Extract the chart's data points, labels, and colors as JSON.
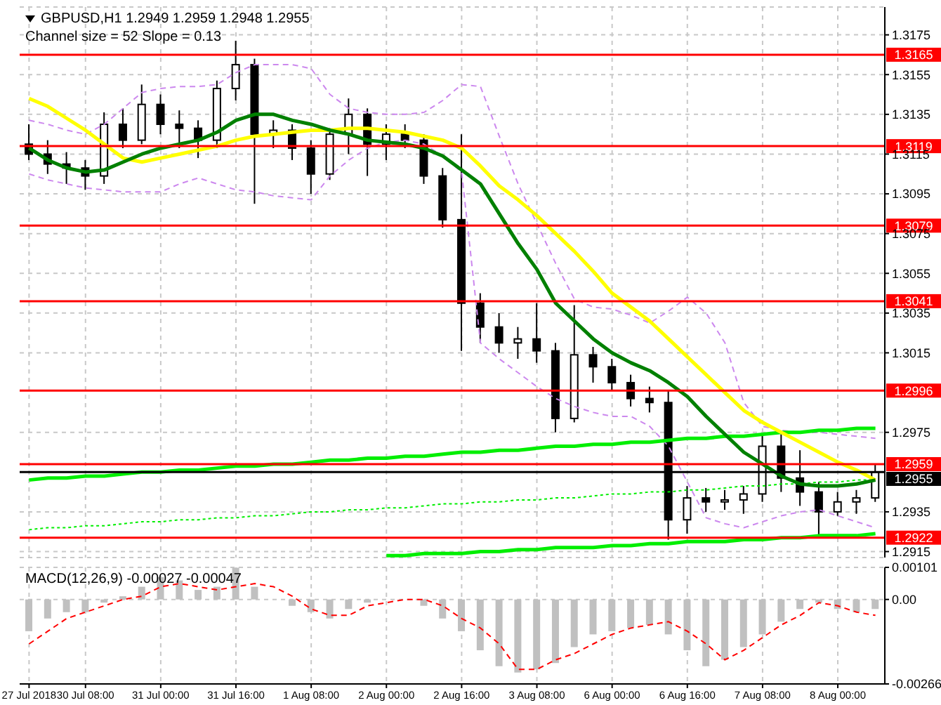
{
  "chart_data": [
    {
      "type": "candlestick",
      "title": "GBPUSD,H1  1.2949 1.2959 1.2948 1.2955",
      "subtitle": "Channel size = 52 Slope = 0.13",
      "categories": [
        null,
        null,
        null,
        null,
        null,
        null,
        null,
        null,
        null,
        null,
        null,
        null,
        null,
        null,
        null,
        null,
        null,
        null,
        null,
        null,
        null,
        null,
        null,
        null,
        null,
        null,
        null,
        null,
        null,
        null,
        null,
        null,
        null,
        null,
        null,
        null,
        null,
        null,
        null,
        null,
        null,
        null,
        null,
        null,
        null,
        null
      ],
      "ohlc": [
        [
          1.312,
          1.313,
          1.3112,
          1.3115
        ],
        [
          1.3115,
          1.3122,
          1.3105,
          1.311
        ],
        [
          1.311,
          1.3116,
          1.31,
          1.3108
        ],
        [
          1.3108,
          1.3112,
          1.3097,
          1.3104
        ],
        [
          1.3104,
          1.3136,
          1.31,
          1.313
        ],
        [
          1.313,
          1.3138,
          1.3118,
          1.3122
        ],
        [
          1.3122,
          1.315,
          1.312,
          1.314
        ],
        [
          1.314,
          1.3145,
          1.3125,
          1.313
        ],
        [
          1.313,
          1.3137,
          1.3118,
          1.3128
        ],
        [
          1.3128,
          1.3132,
          1.3113,
          1.3122
        ],
        [
          1.3122,
          1.3152,
          1.3118,
          1.3148
        ],
        [
          1.3148,
          1.3172,
          1.3142,
          1.316
        ],
        [
          1.316,
          1.3163,
          1.309,
          1.3125
        ],
        [
          1.3125,
          1.3132,
          1.3118,
          1.3127
        ],
        [
          1.3127,
          1.313,
          1.3112,
          1.3118
        ],
        [
          1.3118,
          1.3122,
          1.3095,
          1.3105
        ],
        [
          1.3105,
          1.3128,
          1.3102,
          1.3125
        ],
        [
          1.3125,
          1.3143,
          1.3115,
          1.3135
        ],
        [
          1.3135,
          1.3138,
          1.3104,
          1.312
        ],
        [
          1.312,
          1.313,
          1.3112,
          1.3125
        ],
        [
          1.3125,
          1.313,
          1.3118,
          1.3122
        ],
        [
          1.3122,
          1.3125,
          1.31,
          1.3104
        ],
        [
          1.3104,
          1.3108,
          1.3078,
          1.3082
        ],
        [
          1.3082,
          1.3125,
          1.3016,
          1.304
        ],
        [
          1.304,
          1.3045,
          1.302,
          1.3028
        ],
        [
          1.3028,
          1.3035,
          1.3015,
          1.302
        ],
        [
          1.302,
          1.3028,
          1.3012,
          1.3022
        ],
        [
          1.3022,
          1.304,
          1.301,
          1.3016
        ],
        [
          1.3016,
          1.302,
          1.2975,
          1.2982
        ],
        [
          1.2982,
          1.3039,
          1.298,
          1.3014
        ],
        [
          1.3014,
          1.3018,
          1.3,
          1.3008
        ],
        [
          1.3008,
          1.3012,
          1.2996,
          1.3
        ],
        [
          1.3,
          1.3004,
          1.2988,
          1.2992
        ],
        [
          1.2992,
          1.2998,
          1.2985,
          1.299
        ],
        [
          1.299,
          1.2996,
          1.2921,
          1.2931
        ],
        [
          1.2931,
          1.2948,
          1.2924,
          1.2942
        ],
        [
          1.2942,
          1.2947,
          1.2935,
          1.294
        ],
        [
          1.294,
          1.2946,
          1.2936,
          1.2941
        ],
        [
          1.2941,
          1.2948,
          1.2934,
          1.2944
        ],
        [
          1.2944,
          1.2974,
          1.294,
          1.2968
        ],
        [
          1.2968,
          1.2974,
          1.2945,
          1.2952
        ],
        [
          1.2952,
          1.2966,
          1.2938,
          1.2945
        ],
        [
          1.2945,
          1.295,
          1.2923,
          1.2935
        ],
        [
          1.2935,
          1.2945,
          1.2933,
          1.294
        ],
        [
          1.294,
          1.2946,
          1.2934,
          1.2942
        ],
        [
          1.2942,
          1.2959,
          1.294,
          1.2955
        ]
      ],
      "series": [
        {
          "type": "line",
          "color": "#cc88ee",
          "line_style": "dashed",
          "values": [
            1.3132,
            1.313,
            1.3127,
            1.3125,
            1.313,
            1.3138,
            1.3146,
            1.3148,
            1.3149,
            1.3149,
            1.315,
            1.3156,
            1.316,
            1.316,
            1.316,
            1.3158,
            1.3145,
            1.3138,
            1.3136,
            1.3135,
            1.3135,
            1.3136,
            1.3142,
            1.315,
            1.3149,
            1.3124,
            1.31,
            1.308,
            1.306,
            1.3042,
            1.3038,
            1.3037,
            1.3034,
            1.303,
            1.3036,
            1.3043,
            1.3035,
            1.302,
            1.299,
            1.2978,
            1.2976,
            1.2975,
            1.2975,
            1.2974,
            1.2973,
            1.2972
          ]
        },
        {
          "type": "line",
          "color": "#cc88ee",
          "line_style": "dashed",
          "values": [
            1.3105,
            1.3102,
            1.31,
            1.3098,
            1.3097,
            1.3096,
            1.3096,
            1.3096,
            1.31,
            1.3103,
            1.31,
            1.3097,
            1.3096,
            1.3094,
            1.3093,
            1.3092,
            1.3104,
            1.3112,
            1.3118,
            1.3121,
            1.3122,
            1.312,
            1.3114,
            1.3106,
            1.302,
            1.3012,
            1.3005,
            1.2998,
            1.2992,
            1.2988,
            1.2985,
            1.2983,
            1.2983,
            1.2978,
            1.2968,
            1.295,
            1.2932,
            1.2929,
            1.2927,
            1.293,
            1.2933,
            1.2935,
            1.2936,
            1.2933,
            1.293,
            1.2927
          ]
        },
        {
          "type": "line",
          "color": "#00ee00",
          "values": [
            1.2951,
            1.2952,
            1.2952,
            1.2953,
            1.2953,
            1.2954,
            1.2955,
            1.2955,
            1.2956,
            1.2956,
            1.2957,
            1.2958,
            1.2958,
            1.2959,
            1.2959,
            1.296,
            1.2961,
            1.2961,
            1.2962,
            1.2962,
            1.2963,
            1.2963,
            1.2964,
            1.2965,
            1.2965,
            1.2966,
            1.2966,
            1.2967,
            1.2968,
            1.2968,
            1.2969,
            1.2969,
            1.297,
            1.297,
            1.2971,
            1.2972,
            1.2972,
            1.2973,
            1.2973,
            1.2974,
            1.2975,
            1.2975,
            1.2976,
            1.2976,
            1.2977,
            1.2977
          ]
        },
        {
          "type": "line",
          "color": "#00ee00",
          "line_style": "dotted",
          "values": [
            1.2926,
            1.2927,
            1.2927,
            1.2928,
            1.2928,
            1.2929,
            1.293,
            1.293,
            1.2931,
            1.2931,
            1.2932,
            1.2932,
            1.2933,
            1.2933,
            1.2934,
            1.2935,
            1.2935,
            1.2936,
            1.2936,
            1.2937,
            1.2937,
            1.2938,
            1.2939,
            1.2939,
            1.294,
            1.294,
            1.2941,
            1.2941,
            1.2942,
            1.2942,
            1.2943,
            1.2944,
            1.2944,
            1.2945,
            1.2945,
            1.2946,
            1.2946,
            1.2947,
            1.2948,
            1.2948,
            1.2949,
            1.2949,
            1.295,
            1.295,
            1.2951,
            1.2951
          ]
        },
        {
          "type": "line",
          "color": "#00ee00",
          "values": [
            null,
            null,
            null,
            null,
            null,
            null,
            null,
            null,
            null,
            null,
            null,
            null,
            null,
            null,
            null,
            null,
            null,
            null,
            null,
            1.2913,
            1.2913,
            1.2914,
            1.2914,
            1.2914,
            1.2915,
            1.2915,
            1.2916,
            1.2916,
            1.2917,
            1.2917,
            1.2917,
            1.2918,
            1.2918,
            1.2919,
            1.2919,
            1.292,
            1.292,
            1.292,
            1.2921,
            1.2921,
            1.2922,
            1.2922,
            1.2923,
            1.2923,
            1.2923,
            1.2924
          ]
        },
        {
          "type": "line",
          "color": "#ffff00",
          "values": [
            1.3143,
            1.3139,
            1.3133,
            1.3127,
            1.312,
            1.3113,
            1.3111,
            1.3113,
            1.3115,
            1.3117,
            1.3119,
            1.3122,
            1.3124,
            1.3125,
            1.3126,
            1.3127,
            1.3127,
            1.3128,
            1.3128,
            1.3127,
            1.3126,
            1.3124,
            1.3122,
            1.3118,
            1.3109,
            1.3099,
            1.3092,
            1.3084,
            1.3075,
            1.3066,
            1.3056,
            1.3045,
            1.3038,
            1.3031,
            1.3022,
            1.3013,
            1.3004,
            1.2995,
            1.2986,
            1.298,
            1.2975,
            1.297,
            1.2965,
            1.296,
            1.2956,
            1.2951
          ]
        },
        {
          "type": "line",
          "color": "#008000",
          "values": [
            1.3118,
            1.3112,
            1.3108,
            1.3106,
            1.3107,
            1.3111,
            1.3115,
            1.3118,
            1.312,
            1.3122,
            1.3126,
            1.3132,
            1.3135,
            1.3135,
            1.3132,
            1.313,
            1.3127,
            1.3125,
            1.3122,
            1.3121,
            1.312,
            1.3118,
            1.3114,
            1.3107,
            1.31,
            1.3085,
            1.307,
            1.3057,
            1.304,
            1.3031,
            1.3022,
            1.3015,
            1.301,
            1.3006,
            1.3,
            1.2993,
            1.2983,
            1.2974,
            1.2965,
            1.2959,
            1.2953,
            1.2949,
            1.2948,
            1.2948,
            1.2949,
            1.2951
          ]
        }
      ],
      "ylim": [
        1.2912,
        1.3189
      ],
      "yticks": [
        1.3175,
        1.3155,
        1.3135,
        1.3115,
        1.3095,
        1.3075,
        1.3055,
        1.3035,
        1.3015,
        1.2975,
        1.2935,
        1.2915
      ],
      "ref_lines": [
        {
          "axis": "y",
          "value": 1.3165,
          "label": "1.3165",
          "color": "#ff0000"
        },
        {
          "axis": "y",
          "value": 1.3119,
          "label": "1.3119",
          "color": "#ff0000"
        },
        {
          "axis": "y",
          "value": 1.3079,
          "label": "1.3079",
          "color": "#ff0000"
        },
        {
          "axis": "y",
          "value": 1.3041,
          "label": "1.3041",
          "color": "#ff0000"
        },
        {
          "axis": "y",
          "value": 1.2996,
          "label": "1.2996",
          "color": "#ff0000"
        },
        {
          "axis": "y",
          "value": 1.2959,
          "label": "1.2959",
          "color": "#ff0000"
        },
        {
          "axis": "y",
          "value": 1.2955,
          "label": "1.2955",
          "color": "#000000"
        },
        {
          "axis": "y",
          "value": 1.2922,
          "label": "1.2922",
          "color": "#ff0000"
        }
      ],
      "grid": true,
      "tick_labels": "y"
    },
    {
      "type": "bar",
      "title": "MACD(12,26,9) -0.00027 -0.00047",
      "categories": [
        "27 Jul 2018",
        null,
        null,
        "30 Jul 08:00",
        null,
        null,
        null,
        "31 Jul 00:00",
        null,
        null,
        null,
        "31 Jul 16:00",
        null,
        null,
        null,
        "1 Aug 08:00",
        null,
        null,
        null,
        "2 Aug 00:00",
        null,
        null,
        null,
        "2 Aug 16:00",
        null,
        null,
        null,
        "3 Aug 08:00",
        null,
        null,
        null,
        "6 Aug 00:00",
        null,
        null,
        null,
        "6 Aug 16:00",
        null,
        null,
        null,
        "7 Aug 08:00",
        null,
        null,
        null,
        "8 Aug 00:00",
        null,
        null
      ],
      "series": [
        {
          "type": "bar",
          "color": "#c0c0c0",
          "values": [
            -0.001,
            -0.0006,
            -0.0004,
            -0.0004,
            -0.0001,
            0.0001,
            0.0004,
            0.0007,
            0.0006,
            0.0003,
            0.0004,
            0.001,
            0.0004,
            0.0,
            -0.0002,
            -0.0004,
            -0.0006,
            -0.0003,
            -0.0001,
            0.0,
            0.0,
            -0.0002,
            -0.0006,
            -0.001,
            -0.0016,
            -0.0021,
            -0.0023,
            -0.0022,
            -0.002,
            -0.0015,
            -0.0011,
            -0.001,
            -0.0009,
            -0.0008,
            -0.0011,
            -0.0016,
            -0.0021,
            -0.0019,
            -0.0015,
            -0.0011,
            -0.0007,
            -0.0003,
            -0.0001,
            -0.0003,
            -0.0004,
            -0.0003
          ]
        },
        {
          "type": "line",
          "color": "#ff0000",
          "line_style": "dashed",
          "values": [
            -0.0014,
            -0.001,
            -0.0006,
            -0.0004,
            -0.0002,
            0.0,
            0.0001,
            0.0004,
            0.0005,
            0.0004,
            0.0003,
            0.0004,
            0.0005,
            0.0004,
            0.0001,
            -0.0003,
            -0.0005,
            -0.0005,
            -0.0002,
            -0.0001,
            0.0,
            0.0,
            -0.0002,
            -0.0006,
            -0.0009,
            -0.0014,
            -0.0022,
            -0.0022,
            -0.0019,
            -0.0017,
            -0.0014,
            -0.0011,
            -0.0009,
            -0.0008,
            -0.0007,
            -0.001,
            -0.0014,
            -0.0019,
            -0.0016,
            -0.0012,
            -0.0008,
            -0.0005,
            -0.0001,
            -0.0002,
            -0.0004,
            -0.0005
          ]
        }
      ],
      "ylim": [
        -0.00266,
        0.00101
      ],
      "yticks": [
        0.00101,
        {
          "value": 0,
          "label": "0.00"
        },
        -0.00266
      ],
      "grid": true
    }
  ]
}
